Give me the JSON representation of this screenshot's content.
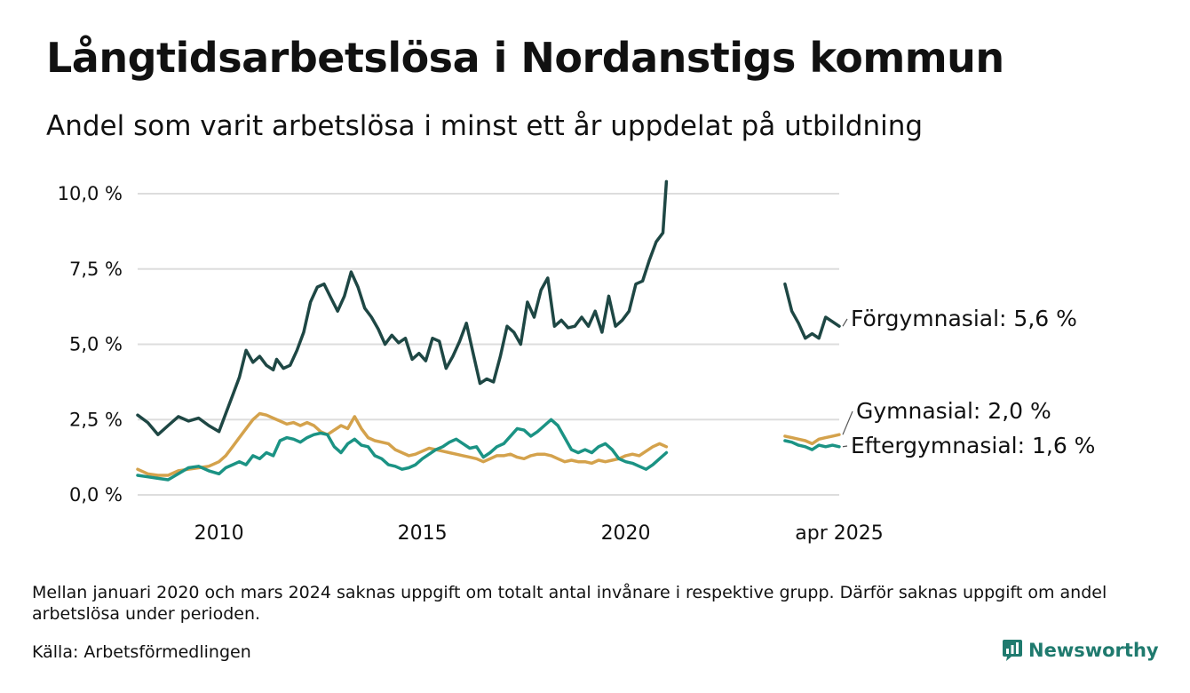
{
  "header": {
    "title": "Långtidsarbetslösa i Nordanstigs kommun",
    "subtitle": "Andel som varit arbetslösa i minst ett år uppdelat på utbildning"
  },
  "footer": {
    "note": "Mellan januari 2020 och mars 2024 saknas uppgift om totalt antal invånare i respektive grupp. Därför saknas uppgift om andel arbetslösa under perioden.",
    "source": "Källa: Arbetsförmedlingen",
    "brand": "Newsworthy",
    "brand_icon": "bar-chart-icon",
    "brand_color": "#1f7a6e"
  },
  "chart_data": {
    "type": "line",
    "y_unit": "%",
    "ylim": [
      0,
      10.5
    ],
    "y_ticks": [
      0,
      2.5,
      5,
      7.5,
      10
    ],
    "y_tick_labels": [
      "0,0 %",
      "2,5 %",
      "5,0 %",
      "7,5 %",
      "10,0 %"
    ],
    "x_ticks": [
      {
        "date": "2010-01",
        "label": "2010"
      },
      {
        "date": "2015-01",
        "label": "2015"
      },
      {
        "date": "2020-01",
        "label": "2020"
      },
      {
        "date": "2025-04",
        "label": "apr 2025"
      }
    ],
    "grid": "horizontal",
    "legend": "none",
    "gap_note": "Mellan januari 2020 och mars 2024 saknas uppgift",
    "series": [
      {
        "name": "Förgymnasial",
        "color": "#1e4744",
        "end_label": "Förgymnasial: 5,6 %",
        "points": [
          [
            "2008-01",
            2.65
          ],
          [
            "2008-04",
            2.4
          ],
          [
            "2008-07",
            2.0
          ],
          [
            "2008-10",
            2.3
          ],
          [
            "2009-01",
            2.6
          ],
          [
            "2009-04",
            2.45
          ],
          [
            "2009-07",
            2.55
          ],
          [
            "2009-10",
            2.3
          ],
          [
            "2010-01",
            2.1
          ],
          [
            "2010-03",
            2.7
          ],
          [
            "2010-05",
            3.3
          ],
          [
            "2010-07",
            3.9
          ],
          [
            "2010-09",
            4.8
          ],
          [
            "2010-11",
            4.4
          ],
          [
            "2011-01",
            4.6
          ],
          [
            "2011-03",
            4.3
          ],
          [
            "2011-05",
            4.15
          ],
          [
            "2011-06",
            4.5
          ],
          [
            "2011-08",
            4.2
          ],
          [
            "2011-10",
            4.3
          ],
          [
            "2011-12",
            4.8
          ],
          [
            "2012-02",
            5.4
          ],
          [
            "2012-04",
            6.4
          ],
          [
            "2012-06",
            6.9
          ],
          [
            "2012-08",
            7.0
          ],
          [
            "2012-10",
            6.55
          ],
          [
            "2012-12",
            6.1
          ],
          [
            "2013-02",
            6.6
          ],
          [
            "2013-04",
            7.4
          ],
          [
            "2013-06",
            6.9
          ],
          [
            "2013-08",
            6.2
          ],
          [
            "2013-10",
            5.9
          ],
          [
            "2013-12",
            5.5
          ],
          [
            "2014-02",
            5.0
          ],
          [
            "2014-04",
            5.3
          ],
          [
            "2014-06",
            5.05
          ],
          [
            "2014-08",
            5.2
          ],
          [
            "2014-10",
            4.5
          ],
          [
            "2014-12",
            4.7
          ],
          [
            "2015-02",
            4.45
          ],
          [
            "2015-04",
            5.2
          ],
          [
            "2015-06",
            5.1
          ],
          [
            "2015-08",
            4.2
          ],
          [
            "2015-10",
            4.6
          ],
          [
            "2015-12",
            5.1
          ],
          [
            "2016-02",
            5.7
          ],
          [
            "2016-04",
            4.7
          ],
          [
            "2016-06",
            3.7
          ],
          [
            "2016-08",
            3.85
          ],
          [
            "2016-10",
            3.75
          ],
          [
            "2016-12",
            4.6
          ],
          [
            "2017-02",
            5.6
          ],
          [
            "2017-04",
            5.4
          ],
          [
            "2017-06",
            5.0
          ],
          [
            "2017-08",
            6.4
          ],
          [
            "2017-10",
            5.9
          ],
          [
            "2017-12",
            6.8
          ],
          [
            "2018-02",
            7.2
          ],
          [
            "2018-04",
            5.6
          ],
          [
            "2018-06",
            5.8
          ],
          [
            "2018-08",
            5.55
          ],
          [
            "2018-10",
            5.6
          ],
          [
            "2018-12",
            5.9
          ],
          [
            "2019-02",
            5.6
          ],
          [
            "2019-04",
            6.1
          ],
          [
            "2019-06",
            5.4
          ],
          [
            "2019-08",
            6.6
          ],
          [
            "2019-10",
            5.6
          ],
          [
            "2019-12",
            5.8
          ],
          [
            "2020-02",
            6.1
          ],
          [
            "2020-04",
            7.0
          ],
          [
            "2020-06",
            7.1
          ],
          [
            "2020-08",
            7.8
          ],
          [
            "2020-10",
            8.4
          ],
          [
            "2020-12",
            8.7
          ],
          [
            "2021-01",
            10.4
          ],
          null,
          [
            "2023-12",
            7.0
          ],
          [
            "2024-02",
            6.1
          ],
          [
            "2024-04",
            5.7
          ],
          [
            "2024-06",
            5.2
          ],
          [
            "2024-08",
            5.35
          ],
          [
            "2024-10",
            5.2
          ],
          [
            "2024-12",
            5.9
          ],
          [
            "2025-02",
            5.75
          ],
          [
            "2025-04",
            5.6
          ]
        ]
      },
      {
        "name": "Gymnasial",
        "color": "#d4a24c",
        "end_label": "Gymnasial: 2,0 %",
        "points": [
          [
            "2008-01",
            0.85
          ],
          [
            "2008-04",
            0.7
          ],
          [
            "2008-07",
            0.65
          ],
          [
            "2008-10",
            0.65
          ],
          [
            "2009-01",
            0.8
          ],
          [
            "2009-04",
            0.85
          ],
          [
            "2009-07",
            0.9
          ],
          [
            "2009-10",
            0.95
          ],
          [
            "2010-01",
            1.1
          ],
          [
            "2010-03",
            1.3
          ],
          [
            "2010-05",
            1.6
          ],
          [
            "2010-07",
            1.9
          ],
          [
            "2010-09",
            2.2
          ],
          [
            "2010-11",
            2.5
          ],
          [
            "2011-01",
            2.7
          ],
          [
            "2011-03",
            2.65
          ],
          [
            "2011-05",
            2.55
          ],
          [
            "2011-07",
            2.45
          ],
          [
            "2011-09",
            2.35
          ],
          [
            "2011-11",
            2.4
          ],
          [
            "2012-01",
            2.3
          ],
          [
            "2012-03",
            2.4
          ],
          [
            "2012-05",
            2.3
          ],
          [
            "2012-07",
            2.1
          ],
          [
            "2012-09",
            2.0
          ],
          [
            "2012-11",
            2.15
          ],
          [
            "2013-01",
            2.3
          ],
          [
            "2013-03",
            2.2
          ],
          [
            "2013-05",
            2.6
          ],
          [
            "2013-07",
            2.2
          ],
          [
            "2013-09",
            1.9
          ],
          [
            "2013-11",
            1.8
          ],
          [
            "2014-01",
            1.75
          ],
          [
            "2014-03",
            1.7
          ],
          [
            "2014-05",
            1.5
          ],
          [
            "2014-07",
            1.4
          ],
          [
            "2014-09",
            1.3
          ],
          [
            "2014-11",
            1.35
          ],
          [
            "2015-01",
            1.45
          ],
          [
            "2015-03",
            1.55
          ],
          [
            "2015-05",
            1.5
          ],
          [
            "2015-07",
            1.45
          ],
          [
            "2015-09",
            1.4
          ],
          [
            "2015-11",
            1.35
          ],
          [
            "2016-01",
            1.3
          ],
          [
            "2016-03",
            1.25
          ],
          [
            "2016-05",
            1.2
          ],
          [
            "2016-07",
            1.1
          ],
          [
            "2016-09",
            1.2
          ],
          [
            "2016-11",
            1.3
          ],
          [
            "2017-01",
            1.3
          ],
          [
            "2017-03",
            1.35
          ],
          [
            "2017-05",
            1.25
          ],
          [
            "2017-07",
            1.2
          ],
          [
            "2017-09",
            1.3
          ],
          [
            "2017-11",
            1.35
          ],
          [
            "2018-01",
            1.35
          ],
          [
            "2018-03",
            1.3
          ],
          [
            "2018-05",
            1.2
          ],
          [
            "2018-07",
            1.1
          ],
          [
            "2018-09",
            1.15
          ],
          [
            "2018-11",
            1.1
          ],
          [
            "2019-01",
            1.1
          ],
          [
            "2019-03",
            1.05
          ],
          [
            "2019-05",
            1.15
          ],
          [
            "2019-07",
            1.1
          ],
          [
            "2019-09",
            1.15
          ],
          [
            "2019-11",
            1.2
          ],
          [
            "2020-01",
            1.3
          ],
          [
            "2020-03",
            1.35
          ],
          [
            "2020-05",
            1.3
          ],
          [
            "2020-07",
            1.45
          ],
          [
            "2020-09",
            1.6
          ],
          [
            "2020-11",
            1.7
          ],
          [
            "2021-01",
            1.6
          ],
          null,
          [
            "2023-12",
            1.95
          ],
          [
            "2024-02",
            1.9
          ],
          [
            "2024-04",
            1.85
          ],
          [
            "2024-06",
            1.8
          ],
          [
            "2024-08",
            1.7
          ],
          [
            "2024-10",
            1.85
          ],
          [
            "2024-12",
            1.9
          ],
          [
            "2025-02",
            1.95
          ],
          [
            "2025-04",
            2.0
          ]
        ]
      },
      {
        "name": "Eftergymnasial",
        "color": "#1b9384",
        "end_label": "Eftergymnasial: 1,6 %",
        "points": [
          [
            "2008-01",
            0.65
          ],
          [
            "2008-04",
            0.6
          ],
          [
            "2008-07",
            0.55
          ],
          [
            "2008-10",
            0.5
          ],
          [
            "2009-01",
            0.7
          ],
          [
            "2009-04",
            0.9
          ],
          [
            "2009-07",
            0.95
          ],
          [
            "2009-10",
            0.8
          ],
          [
            "2010-01",
            0.7
          ],
          [
            "2010-03",
            0.9
          ],
          [
            "2010-05",
            1.0
          ],
          [
            "2010-07",
            1.1
          ],
          [
            "2010-09",
            1.0
          ],
          [
            "2010-11",
            1.3
          ],
          [
            "2011-01",
            1.2
          ],
          [
            "2011-03",
            1.4
          ],
          [
            "2011-05",
            1.3
          ],
          [
            "2011-07",
            1.8
          ],
          [
            "2011-09",
            1.9
          ],
          [
            "2011-11",
            1.85
          ],
          [
            "2012-01",
            1.75
          ],
          [
            "2012-03",
            1.9
          ],
          [
            "2012-05",
            2.0
          ],
          [
            "2012-07",
            2.05
          ],
          [
            "2012-09",
            2.0
          ],
          [
            "2012-11",
            1.6
          ],
          [
            "2013-01",
            1.4
          ],
          [
            "2013-03",
            1.7
          ],
          [
            "2013-05",
            1.85
          ],
          [
            "2013-07",
            1.65
          ],
          [
            "2013-09",
            1.6
          ],
          [
            "2013-11",
            1.3
          ],
          [
            "2014-01",
            1.2
          ],
          [
            "2014-03",
            1.0
          ],
          [
            "2014-05",
            0.95
          ],
          [
            "2014-07",
            0.85
          ],
          [
            "2014-09",
            0.9
          ],
          [
            "2014-11",
            1.0
          ],
          [
            "2015-01",
            1.2
          ],
          [
            "2015-03",
            1.35
          ],
          [
            "2015-05",
            1.5
          ],
          [
            "2015-07",
            1.6
          ],
          [
            "2015-09",
            1.75
          ],
          [
            "2015-11",
            1.85
          ],
          [
            "2016-01",
            1.7
          ],
          [
            "2016-03",
            1.55
          ],
          [
            "2016-05",
            1.6
          ],
          [
            "2016-07",
            1.25
          ],
          [
            "2016-09",
            1.4
          ],
          [
            "2016-11",
            1.6
          ],
          [
            "2017-01",
            1.7
          ],
          [
            "2017-03",
            1.95
          ],
          [
            "2017-05",
            2.2
          ],
          [
            "2017-07",
            2.15
          ],
          [
            "2017-09",
            1.95
          ],
          [
            "2017-11",
            2.1
          ],
          [
            "2018-01",
            2.3
          ],
          [
            "2018-03",
            2.5
          ],
          [
            "2018-05",
            2.3
          ],
          [
            "2018-07",
            1.9
          ],
          [
            "2018-09",
            1.5
          ],
          [
            "2018-11",
            1.4
          ],
          [
            "2019-01",
            1.5
          ],
          [
            "2019-03",
            1.4
          ],
          [
            "2019-05",
            1.6
          ],
          [
            "2019-07",
            1.7
          ],
          [
            "2019-09",
            1.5
          ],
          [
            "2019-11",
            1.2
          ],
          [
            "2020-01",
            1.1
          ],
          [
            "2020-03",
            1.05
          ],
          [
            "2020-05",
            0.95
          ],
          [
            "2020-07",
            0.85
          ],
          [
            "2020-09",
            1.0
          ],
          [
            "2020-11",
            1.2
          ],
          [
            "2021-01",
            1.4
          ],
          null,
          [
            "2023-12",
            1.8
          ],
          [
            "2024-02",
            1.75
          ],
          [
            "2024-04",
            1.65
          ],
          [
            "2024-06",
            1.6
          ],
          [
            "2024-08",
            1.5
          ],
          [
            "2024-10",
            1.65
          ],
          [
            "2024-12",
            1.6
          ],
          [
            "2025-02",
            1.65
          ],
          [
            "2025-04",
            1.6
          ]
        ]
      }
    ]
  }
}
